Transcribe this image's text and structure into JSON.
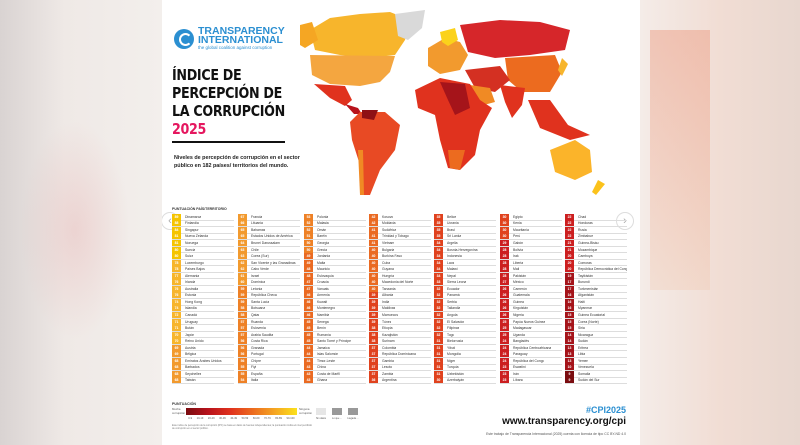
{
  "header": {
    "logo_line1": "TRANSPARENCY",
    "logo_line2": "INTERNATIONAL",
    "logo_tagline": "the global coalition against corruption",
    "title_line1": "ÍNDICE DE",
    "title_line2": "PERCEPCIÓN DE",
    "title_line3": "LA CORRUPCIÓN",
    "year": "2025",
    "subtitle": "Niveles de percepción de corrupción en el sector público en 182 países/ territorios del mundo."
  },
  "list_header": "PUNTUACIÓN PAÍS/TERRITORIO",
  "columns": [
    [
      [
        "89",
        "Dinamarca"
      ],
      [
        "88",
        "Finlandia"
      ],
      [
        "84",
        "Singapur"
      ],
      [
        "81",
        "Nueva Zelanda"
      ],
      [
        "81",
        "Noruega"
      ],
      [
        "80",
        "Suecia"
      ],
      [
        "80",
        "Suiza"
      ],
      [
        "78",
        "Luxemburgo"
      ],
      [
        "78",
        "Países Bajos"
      ],
      [
        "77",
        "Alemania"
      ],
      [
        "76",
        "Irlanda"
      ],
      [
        "76",
        "Australia"
      ],
      [
        "76",
        "Estonia"
      ],
      [
        "74",
        "Hong Kong"
      ],
      [
        "74",
        "Islandia"
      ],
      [
        "72",
        "Canadá"
      ],
      [
        "71",
        "Uruguay"
      ],
      [
        "71",
        "Bután"
      ],
      [
        "70",
        "Japón"
      ],
      [
        "70",
        "Reino Unido"
      ],
      [
        "69",
        "Austria"
      ],
      [
        "69",
        "Bélgica"
      ],
      [
        "68",
        "Emiratos Árabes Unidos"
      ],
      [
        "68",
        "Barbados"
      ],
      [
        "68",
        "Seychelles"
      ],
      [
        "68",
        "Taiwán"
      ]
    ],
    [
      [
        "67",
        "Francia"
      ],
      [
        "66",
        "Lituania"
      ],
      [
        "65",
        "Bahamas"
      ],
      [
        "65",
        "Estados Unidos de América"
      ],
      [
        "64",
        "Brunei Darussalam"
      ],
      [
        "63",
        "Chile"
      ],
      [
        "63",
        "Corea (Sur)"
      ],
      [
        "62",
        "San Vicente y las Granadinas"
      ],
      [
        "62",
        "Cabo Verde"
      ],
      [
        "61",
        "Israel"
      ],
      [
        "60",
        "Dominica"
      ],
      [
        "59",
        "Letonia"
      ],
      [
        "59",
        "República Checa"
      ],
      [
        "59",
        "Santa Lucía"
      ],
      [
        "58",
        "Botsuana"
      ],
      [
        "58",
        "Qatar"
      ],
      [
        "57",
        "Ruanda"
      ],
      [
        "57",
        "Eslovenia"
      ],
      [
        "57",
        "Arabia Saudita"
      ],
      [
        "56",
        "Costa Rica"
      ],
      [
        "56",
        "Granada"
      ],
      [
        "56",
        "Portugal"
      ],
      [
        "56",
        "Chipre"
      ],
      [
        "55",
        "Fiyi"
      ],
      [
        "55",
        "España"
      ],
      [
        "54",
        "Italia"
      ]
    ],
    [
      [
        "53",
        "Polonia"
      ],
      [
        "52",
        "Malasia"
      ],
      [
        "52",
        "Omán"
      ],
      [
        "51",
        "Baréin"
      ],
      [
        "50",
        "Georgia"
      ],
      [
        "50",
        "Grecia"
      ],
      [
        "49",
        "Jordania"
      ],
      [
        "49",
        "Malta"
      ],
      [
        "48",
        "Mauricio"
      ],
      [
        "48",
        "Eslovaquia"
      ],
      [
        "47",
        "Croacia"
      ],
      [
        "47",
        "Vanuatu"
      ],
      [
        "46",
        "Armenia"
      ],
      [
        "46",
        "Kuwait"
      ],
      [
        "46",
        "Montenegro"
      ],
      [
        "46",
        "Namibia"
      ],
      [
        "45",
        "Senegal"
      ],
      [
        "45",
        "Benín"
      ],
      [
        "45",
        "Rumanía"
      ],
      [
        "45",
        "Santo Tomé y Príncipe"
      ],
      [
        "44",
        "Jamaica"
      ],
      [
        "44",
        "Islas Salomón"
      ],
      [
        "44",
        "Timor-Leste"
      ],
      [
        "43",
        "China"
      ],
      [
        "43",
        "Costa de Marfil"
      ],
      [
        "43",
        "Ghana"
      ]
    ],
    [
      [
        "42",
        "Kosovo"
      ],
      [
        "42",
        "Moldavia"
      ],
      [
        "41",
        "Sudáfrica"
      ],
      [
        "41",
        "Trinidad y Tobago"
      ],
      [
        "41",
        "Vietnam"
      ],
      [
        "40",
        "Bulgaria"
      ],
      [
        "40",
        "Burkina Faso"
      ],
      [
        "40",
        "Cuba"
      ],
      [
        "40",
        "Guyana"
      ],
      [
        "40",
        "Hungría"
      ],
      [
        "40",
        "Macedonia del Norte"
      ],
      [
        "40",
        "Tanzania"
      ],
      [
        "39",
        "Albania"
      ],
      [
        "39",
        "India"
      ],
      [
        "39",
        "Maldivas"
      ],
      [
        "39",
        "Marruecos"
      ],
      [
        "39",
        "Túnez"
      ],
      [
        "38",
        "Etiopía"
      ],
      [
        "38",
        "Kazajistán"
      ],
      [
        "38",
        "Surinam"
      ],
      [
        "37",
        "Colombia"
      ],
      [
        "37",
        "República Dominicana"
      ],
      [
        "37",
        "Gambia"
      ],
      [
        "37",
        "Lesoto"
      ],
      [
        "37",
        "Zambia"
      ],
      [
        "36",
        "Argentina"
      ]
    ],
    [
      [
        "35",
        "Belice"
      ],
      [
        "35",
        "Ucrania"
      ],
      [
        "35",
        "Brasil"
      ],
      [
        "35",
        "Sri Lanka"
      ],
      [
        "34",
        "Argelia"
      ],
      [
        "34",
        "Bosnia-Herzegovina"
      ],
      [
        "34",
        "Indonesia"
      ],
      [
        "34",
        "Laos"
      ],
      [
        "34",
        "Malawi"
      ],
      [
        "34",
        "Nepal"
      ],
      [
        "33",
        "Sierra Leona"
      ],
      [
        "32",
        "Ecuador"
      ],
      [
        "32",
        "Panamá"
      ],
      [
        "32",
        "Serbia"
      ],
      [
        "32",
        "Tailandia"
      ],
      [
        "32",
        "Angola"
      ],
      [
        "32",
        "El Salvador"
      ],
      [
        "32",
        "Filipinas"
      ],
      [
        "32",
        "Togo"
      ],
      [
        "31",
        "Bielorrusia"
      ],
      [
        "31",
        "Yibuti"
      ],
      [
        "31",
        "Mongolia"
      ],
      [
        "31",
        "Níger"
      ],
      [
        "31",
        "Turquía"
      ],
      [
        "31",
        "Uzbekistán"
      ],
      [
        "30",
        "Azerbaiyán"
      ]
    ],
    [
      [
        "30",
        "Egipto"
      ],
      [
        "30",
        "Kenia"
      ],
      [
        "30",
        "Mauritania"
      ],
      [
        "30",
        "Perú"
      ],
      [
        "29",
        "Gabón"
      ],
      [
        "28",
        "Bolivia"
      ],
      [
        "28",
        "Irak"
      ],
      [
        "28",
        "Liberia"
      ],
      [
        "28",
        "Mali"
      ],
      [
        "28",
        "Pakistán"
      ],
      [
        "27",
        "México"
      ],
      [
        "26",
        "Camerún"
      ],
      [
        "26",
        "Guatemala"
      ],
      [
        "26",
        "Guinea"
      ],
      [
        "26",
        "Kirguistán"
      ],
      [
        "26",
        "Nigeria"
      ],
      [
        "25",
        "Papúa Nueva Guinea"
      ],
      [
        "25",
        "Madagascar"
      ],
      [
        "25",
        "Uganda"
      ],
      [
        "24",
        "Bangladés"
      ],
      [
        "24",
        "República Centroafricana"
      ],
      [
        "24",
        "Paraguay"
      ],
      [
        "24",
        "República del Congo"
      ],
      [
        "23",
        "Eswatini"
      ],
      [
        "23",
        "Irán"
      ],
      [
        "23",
        "Líbano"
      ]
    ],
    [
      [
        "22",
        "Chad"
      ],
      [
        "22",
        "Honduras"
      ],
      [
        "22",
        "Rusia"
      ],
      [
        "22",
        "Zimbabue"
      ],
      [
        "21",
        "Guinea-Bisáu"
      ],
      [
        "21",
        "Mozambique"
      ],
      [
        "20",
        "Camboya"
      ],
      [
        "20",
        "Comoras"
      ],
      [
        "20",
        "República Democrática del Congo"
      ],
      [
        "19",
        "Tayikistán"
      ],
      [
        "17",
        "Burundi"
      ],
      [
        "17",
        "Turkmenistán"
      ],
      [
        "16",
        "Afganistán"
      ],
      [
        "16",
        "Haití"
      ],
      [
        "16",
        "Myanmar"
      ],
      [
        "15",
        "Guinea Ecuatorial"
      ],
      [
        "15",
        "Corea (Norte)"
      ],
      [
        "15",
        "Siria"
      ],
      [
        "14",
        "Nicaragua"
      ],
      [
        "14",
        "Sudán"
      ],
      [
        "13",
        "Eritrea"
      ],
      [
        "13",
        "Libia"
      ],
      [
        "13",
        "Yemen"
      ],
      [
        "10",
        "Venezuela"
      ],
      [
        "9",
        "Somalia"
      ],
      [
        "9",
        "Sudán del Sur"
      ]
    ]
  ],
  "legend": {
    "title": "PUNTUACIÓN",
    "low": "Mucha corrupción",
    "high": "Ninguna corrupción",
    "ticks": [
      "0-9",
      "10-19",
      "20-29",
      "30-39",
      "40-49",
      "50-59",
      "60-69",
      "70-79",
      "80-89",
      "90-100"
    ],
    "no_data": "Sin datos",
    "box2": "Lo que ...",
    "box3": "Llegada ...",
    "fine_print": "Este índice de percepción de la corrupción (IPC) se basa en datos de fuentes independientes; la puntuación indica el nivel percibido de corrupción en el sector público."
  },
  "footer": {
    "hashtag": "#CPI2025",
    "url": "www.transparency.org/cpi",
    "license": "Este trabajo de Transparencia Internacional (2025) cuenta con licencia de tipo CC BY-ND 4.0"
  },
  "colors": {
    "accent_pink": "#e5175f",
    "brand_blue": "#2b8fd1"
  }
}
